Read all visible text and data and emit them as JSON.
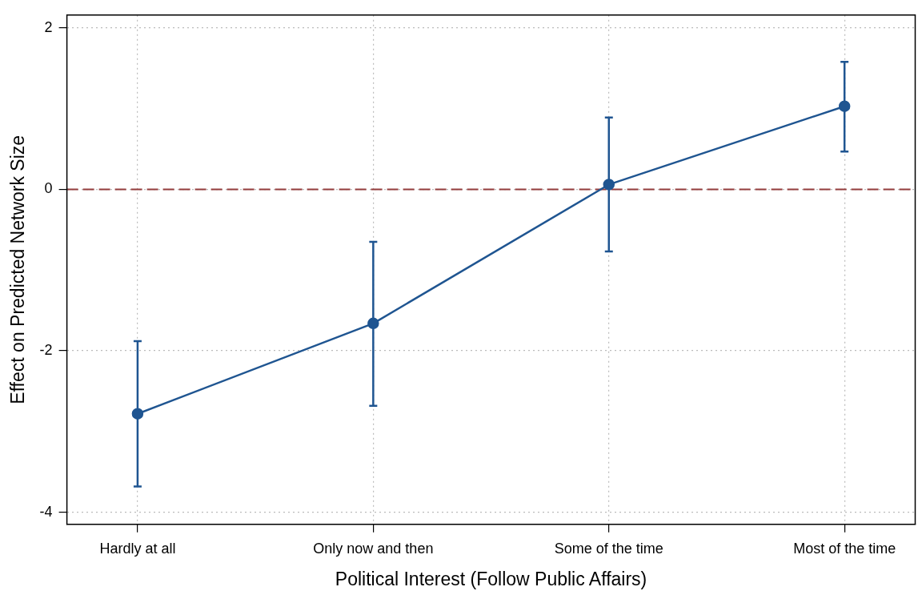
{
  "chart_data": {
    "type": "line",
    "xlabel": "Political Interest (Follow Public Affairs)",
    "ylabel": "Effect on Predicted Network Size",
    "categories": [
      "Hardly at all",
      "Only now and then",
      "Some of the time",
      "Most of the time"
    ],
    "series": [
      {
        "color": "#1f5591",
        "values": [
          -2.78,
          -1.66,
          0.06,
          1.03
        ],
        "errors": [
          [
            -3.68,
            -1.88
          ],
          [
            -2.68,
            -0.65
          ],
          [
            -0.77,
            0.89
          ],
          [
            0.47,
            1.58
          ]
        ]
      }
    ],
    "ylim": [
      -4.15,
      2.16
    ],
    "yticks": [
      -4,
      -2,
      0,
      2
    ],
    "grid": true,
    "marker": "circle",
    "line_style": "solid",
    "legend": false,
    "ref_lines": [
      {
        "axis": "y",
        "value": 0,
        "color": "#943c3c",
        "line_style": "dashed"
      }
    ]
  }
}
